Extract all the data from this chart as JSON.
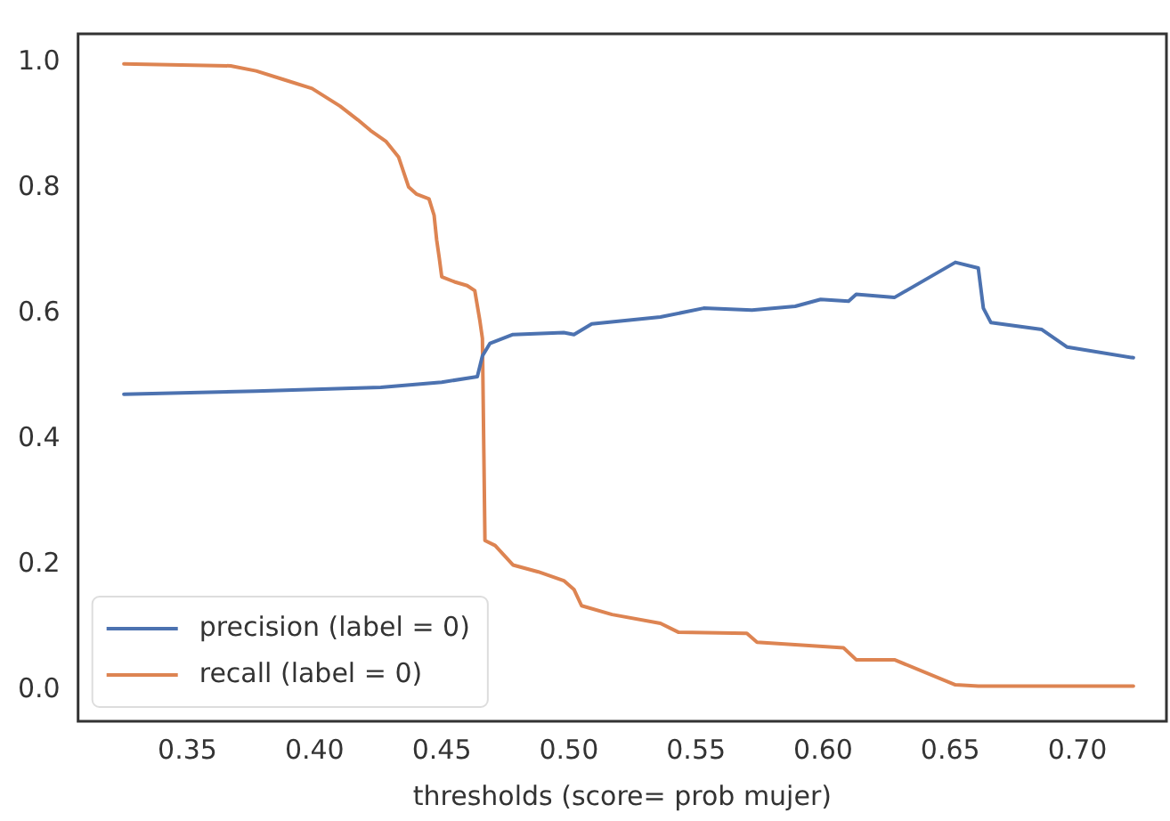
{
  "chart_data": {
    "type": "line",
    "xlabel": "thresholds (score= prob mujer)",
    "xlim": [
      0.307,
      0.735
    ],
    "xticks": [
      0.35,
      {
        "value": 0.4,
        "label": "0.40"
      },
      0.45,
      {
        "value": 0.5,
        "label": "0.50"
      },
      0.55,
      {
        "value": 0.6,
        "label": "0.60"
      },
      0.65,
      {
        "value": 0.7,
        "label": "0.70"
      }
    ],
    "ylim": [
      -0.05,
      1.045
    ],
    "yticks": [
      {
        "value": 0,
        "label": "0.0"
      },
      0.2,
      0.4,
      0.6,
      0.8,
      {
        "value": 1,
        "label": "1.0"
      }
    ],
    "grid": false,
    "legend": "bottom left",
    "marker": "none",
    "line_style": "solid",
    "series": [
      {
        "name": "precision (label = 0)",
        "color": "#4c72b0",
        "x": [
          0.325,
          0.377,
          0.426,
          0.45,
          0.464,
          0.466,
          0.469,
          0.478,
          0.498,
          0.502,
          0.509,
          0.536,
          0.553,
          0.572,
          0.589,
          0.599,
          0.61,
          0.613,
          0.628,
          0.652,
          0.661,
          0.663,
          0.666,
          0.686,
          0.696,
          0.722
        ],
        "values": [
          0.471,
          0.476,
          0.482,
          0.49,
          0.499,
          0.532,
          0.552,
          0.566,
          0.569,
          0.566,
          0.583,
          0.594,
          0.608,
          0.605,
          0.611,
          0.622,
          0.619,
          0.63,
          0.625,
          0.681,
          0.672,
          0.608,
          0.585,
          0.574,
          0.546,
          0.529
        ]
      },
      {
        "name": "recall (label = 0)",
        "color": "#dd8452",
        "x": [
          0.325,
          0.367,
          0.377,
          0.388,
          0.399,
          0.41,
          0.417,
          0.422,
          0.428,
          0.433,
          0.437,
          0.44,
          0.445,
          0.447,
          0.448,
          0.449,
          0.45,
          0.455,
          0.46,
          0.463,
          0.465,
          0.466,
          0.467,
          0.471,
          0.478,
          0.488,
          0.498,
          0.502,
          0.505,
          0.517,
          0.536,
          0.543,
          0.57,
          0.574,
          0.608,
          0.613,
          0.628,
          0.652,
          0.661,
          0.722
        ],
        "values": [
          0.997,
          0.994,
          0.986,
          0.972,
          0.958,
          0.93,
          0.908,
          0.891,
          0.874,
          0.849,
          0.801,
          0.79,
          0.782,
          0.756,
          0.717,
          0.689,
          0.658,
          0.65,
          0.644,
          0.636,
          0.588,
          0.56,
          0.238,
          0.23,
          0.199,
          0.188,
          0.174,
          0.16,
          0.134,
          0.12,
          0.106,
          0.092,
          0.09,
          0.076,
          0.067,
          0.048,
          0.048,
          0.008,
          0.006,
          0.006
        ]
      }
    ]
  }
}
